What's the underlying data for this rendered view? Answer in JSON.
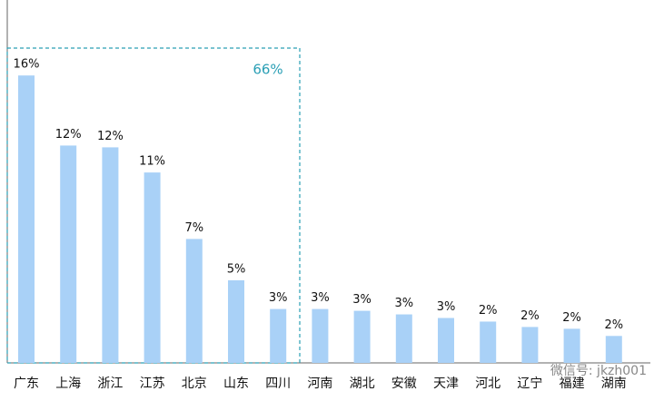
{
  "chart_data": {
    "type": "bar",
    "categories": [
      "广东",
      "上海",
      "浙江",
      "江苏",
      "北京",
      "山东",
      "四川",
      "河南",
      "湖北",
      "安徽",
      "天津",
      "河北",
      "辽宁",
      "福建",
      "湖南"
    ],
    "values": [
      16,
      12.1,
      12,
      10.6,
      6.9,
      4.6,
      3,
      3,
      2.9,
      2.7,
      2.5,
      2.3,
      2,
      1.9,
      1.5
    ],
    "value_labels": [
      "16%",
      "12%",
      "12%",
      "11%",
      "7%",
      "5%",
      "3%",
      "3%",
      "3%",
      "3%",
      "3%",
      "2%",
      "2%",
      "2%",
      "2%"
    ],
    "color": "#a9d1f7",
    "annotation": "66%",
    "watermark": "微信号: jkzh001"
  }
}
